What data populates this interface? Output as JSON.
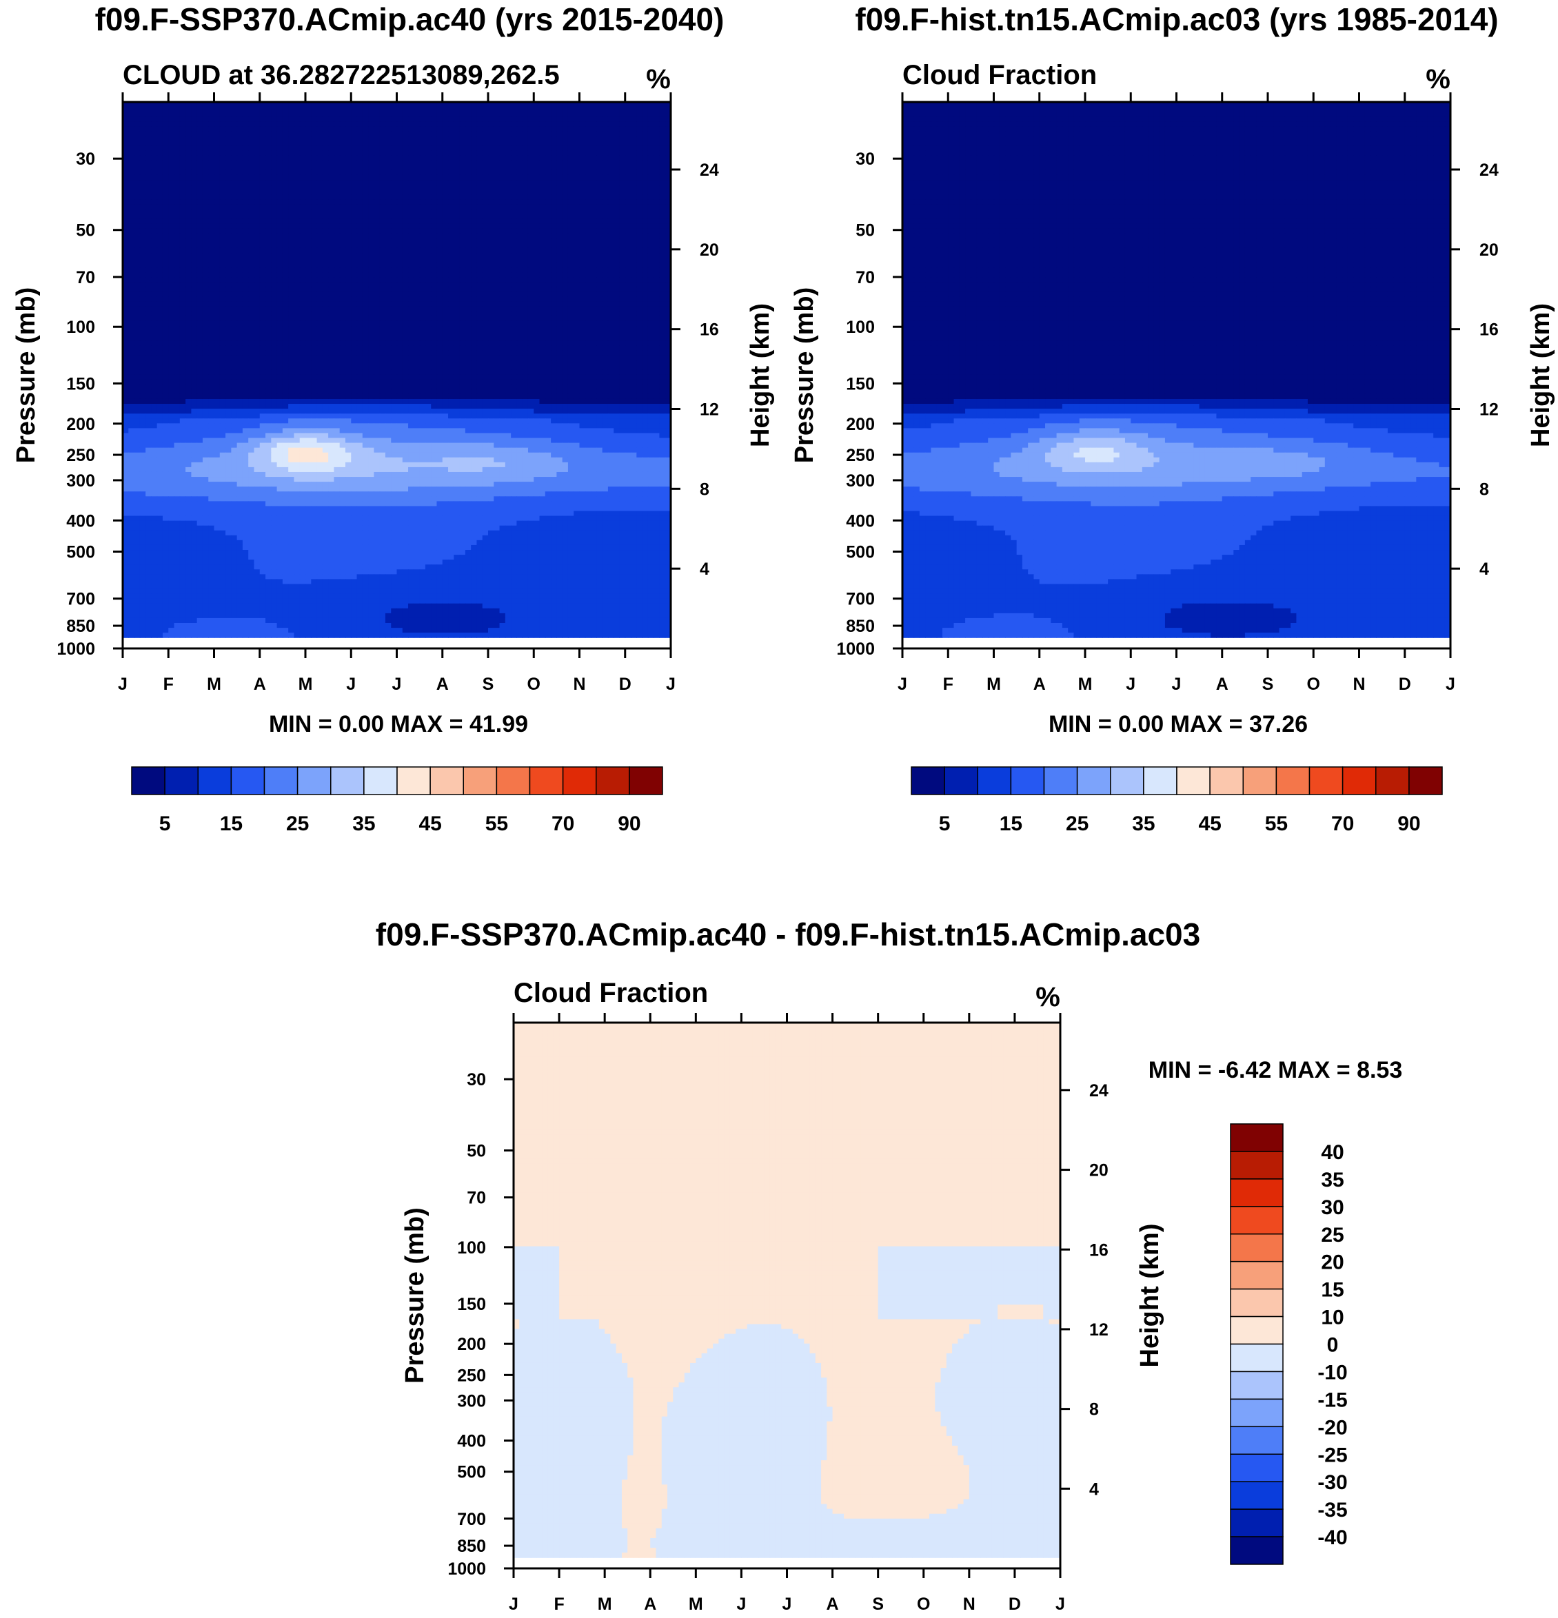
{
  "chart_data": [
    {
      "type": "heatmap",
      "title": "f09.F-SSP370.ACmip.ac40 (yrs 2015-2040)",
      "subtitle": "CLOUD at 36.282722513089,262.5",
      "units": "%",
      "xlabel": "",
      "ylabel": "Pressure (mb)",
      "y2label": "Height (km)",
      "x_categories": [
        "J",
        "F",
        "M",
        "A",
        "M",
        "J",
        "J",
        "A",
        "S",
        "O",
        "N",
        "D",
        "J"
      ],
      "pressure_ticks": [
        30,
        50,
        70,
        100,
        150,
        200,
        250,
        300,
        400,
        500,
        700,
        850,
        1000
      ],
      "height_ticks": [
        24,
        20,
        16,
        12,
        8,
        4
      ],
      "ylim": [
        1000,
        20
      ],
      "min_label": "MIN =   0.00 MAX =  41.99",
      "min": 0.0,
      "max": 41.99,
      "colorbar_labels": [
        "5",
        "15",
        "25",
        "35",
        "45",
        "55",
        "70",
        "90"
      ],
      "colorbar_levels": [
        0,
        5,
        10,
        15,
        20,
        25,
        30,
        35,
        40,
        45,
        50,
        55,
        60,
        70,
        80,
        90
      ],
      "field": "ssp"
    },
    {
      "type": "heatmap",
      "title": "f09.F-hist.tn15.ACmip.ac03 (yrs 1985-2014)",
      "subtitle": "Cloud Fraction",
      "units": "%",
      "xlabel": "",
      "ylabel": "Pressure (mb)",
      "y2label": "Height (km)",
      "x_categories": [
        "J",
        "F",
        "M",
        "A",
        "M",
        "J",
        "J",
        "A",
        "S",
        "O",
        "N",
        "D",
        "J"
      ],
      "pressure_ticks": [
        30,
        50,
        70,
        100,
        150,
        200,
        250,
        300,
        400,
        500,
        700,
        850,
        1000
      ],
      "height_ticks": [
        24,
        20,
        16,
        12,
        8,
        4
      ],
      "ylim": [
        1000,
        20
      ],
      "min_label": "MIN =   0.00 MAX =  37.26",
      "min": 0.0,
      "max": 37.26,
      "colorbar_labels": [
        "5",
        "15",
        "25",
        "35",
        "45",
        "55",
        "70",
        "90"
      ],
      "colorbar_levels": [
        0,
        5,
        10,
        15,
        20,
        25,
        30,
        35,
        40,
        45,
        50,
        55,
        60,
        70,
        80,
        90
      ],
      "field": "hist"
    },
    {
      "type": "heatmap",
      "title": "f09.F-SSP370.ACmip.ac40 - f09.F-hist.tn15.ACmip.ac03",
      "subtitle": "Cloud Fraction",
      "units": "%",
      "xlabel": "",
      "ylabel": "Pressure (mb)",
      "y2label": "Height (km)",
      "x_categories": [
        "J",
        "F",
        "M",
        "A",
        "M",
        "J",
        "J",
        "A",
        "S",
        "O",
        "N",
        "D",
        "J"
      ],
      "pressure_ticks": [
        30,
        50,
        70,
        100,
        150,
        200,
        250,
        300,
        400,
        500,
        700,
        850,
        1000
      ],
      "height_ticks": [
        24,
        20,
        16,
        12,
        8,
        4
      ],
      "ylim": [
        1000,
        20
      ],
      "min_label": "MIN =  -6.42 MAX =   8.53",
      "min": -6.42,
      "max": 8.53,
      "colorbar_labels": [
        "40",
        "35",
        "30",
        "25",
        "20",
        "15",
        "10",
        "0",
        "-10",
        "-15",
        "-20",
        "-25",
        "-30",
        "-35",
        "-40"
      ],
      "colorbar_levels": [
        -40,
        -35,
        -30,
        -25,
        -20,
        -15,
        -10,
        0,
        10,
        15,
        20,
        25,
        30,
        35,
        40
      ],
      "field": "diff"
    }
  ],
  "colors": {
    "abs_palette": [
      "#000a7f",
      "#001fb0",
      "#0a3ddc",
      "#2658f2",
      "#4e7ef8",
      "#7ca3fb",
      "#abc4fc",
      "#d8e7fd",
      "#fde7d7",
      "#fbc7ad",
      "#f7a07a",
      "#f4764a",
      "#ef4a1f",
      "#e02a06",
      "#b81c03",
      "#800202"
    ],
    "diff_palette": [
      "#800202",
      "#b81c03",
      "#e02a06",
      "#ef4a1f",
      "#f4764a",
      "#f7a07a",
      "#fbc7ad",
      "#fde7d7",
      "#d8e7fd",
      "#abc4fc",
      "#7ca3fb",
      "#4e7ef8",
      "#2658f2",
      "#0a3ddc",
      "#001fb0",
      "#000a7f"
    ]
  }
}
